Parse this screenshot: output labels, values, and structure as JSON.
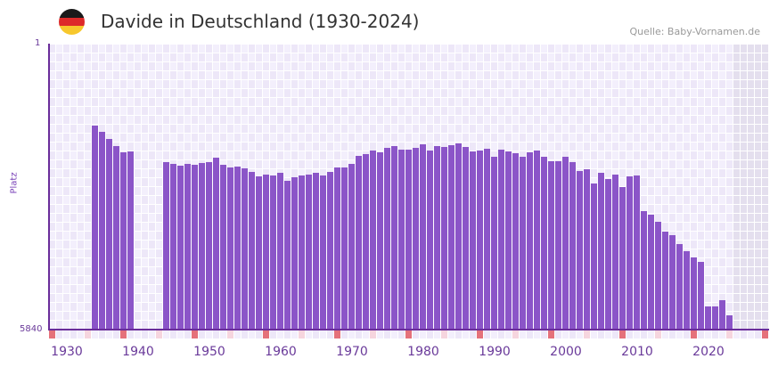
{
  "header": {
    "title": "Davide in Deutschland (1930-2024)",
    "source": "Quelle: Baby-Vornamen.de",
    "flag_colors": [
      "#1a1a1a",
      "#dd2a2a",
      "#f7c82d"
    ]
  },
  "axes": {
    "y_top_label": "1",
    "y_bottom_label": "5840",
    "y_title": "Platz",
    "x_labels": [
      "1930",
      "1940",
      "1950",
      "1960",
      "1970",
      "1980",
      "1990",
      "2000",
      "2010",
      "2020"
    ]
  },
  "colors": {
    "bar": "#8b55c8",
    "axis": "#6a2d9a",
    "grid_a": "#f3effc",
    "grid_b": "#ede7f8",
    "future_shade": "#e4dfee",
    "marker_decade": "#e5717a",
    "marker_half": "#f6d5de"
  },
  "chart_data": {
    "type": "bar",
    "title": "Davide in Deutschland (1930-2024)",
    "xlabel": "",
    "ylabel": "Platz",
    "y_inverted": true,
    "ylim": [
      5840,
      1
    ],
    "x_range": [
      1928,
      2028
    ],
    "note": "values are bar heights in px above baseline (321px = rank 1); higher = better rank",
    "years": [
      1934,
      1935,
      1936,
      1937,
      1938,
      1939,
      1944,
      1945,
      1946,
      1947,
      1948,
      1949,
      1950,
      1951,
      1952,
      1953,
      1954,
      1955,
      1956,
      1957,
      1958,
      1959,
      1960,
      1961,
      1962,
      1963,
      1964,
      1965,
      1966,
      1967,
      1968,
      1969,
      1970,
      1971,
      1972,
      1973,
      1974,
      1975,
      1976,
      1977,
      1978,
      1979,
      1980,
      1981,
      1982,
      1983,
      1984,
      1985,
      1986,
      1987,
      1988,
      1989,
      1990,
      1991,
      1992,
      1993,
      1994,
      1995,
      1996,
      1997,
      1998,
      1999,
      2000,
      2001,
      2002,
      2003,
      2004,
      2005,
      2006,
      2007,
      2008,
      2009,
      2010,
      2011,
      2012,
      2013,
      2014,
      2015,
      2016,
      2017,
      2018,
      2019,
      2020,
      2021,
      2022,
      2023
    ],
    "heights": [
      229,
      222,
      214,
      206,
      199,
      200,
      188,
      186,
      184,
      186,
      185,
      187,
      188,
      193,
      185,
      182,
      183,
      181,
      177,
      172,
      174,
      173,
      176,
      167,
      171,
      173,
      174,
      176,
      173,
      177,
      182,
      182,
      186,
      195,
      197,
      201,
      199,
      204,
      206,
      202,
      202,
      204,
      208,
      201,
      206,
      205,
      207,
      209,
      205,
      200,
      201,
      203,
      194,
      202,
      200,
      198,
      194,
      199,
      201,
      194,
      189,
      189,
      194,
      188,
      178,
      180,
      164,
      176,
      169,
      174,
      160,
      172,
      173,
      133,
      129,
      121,
      110,
      106,
      96,
      88,
      81,
      76,
      26,
      26,
      33,
      16
    ]
  }
}
